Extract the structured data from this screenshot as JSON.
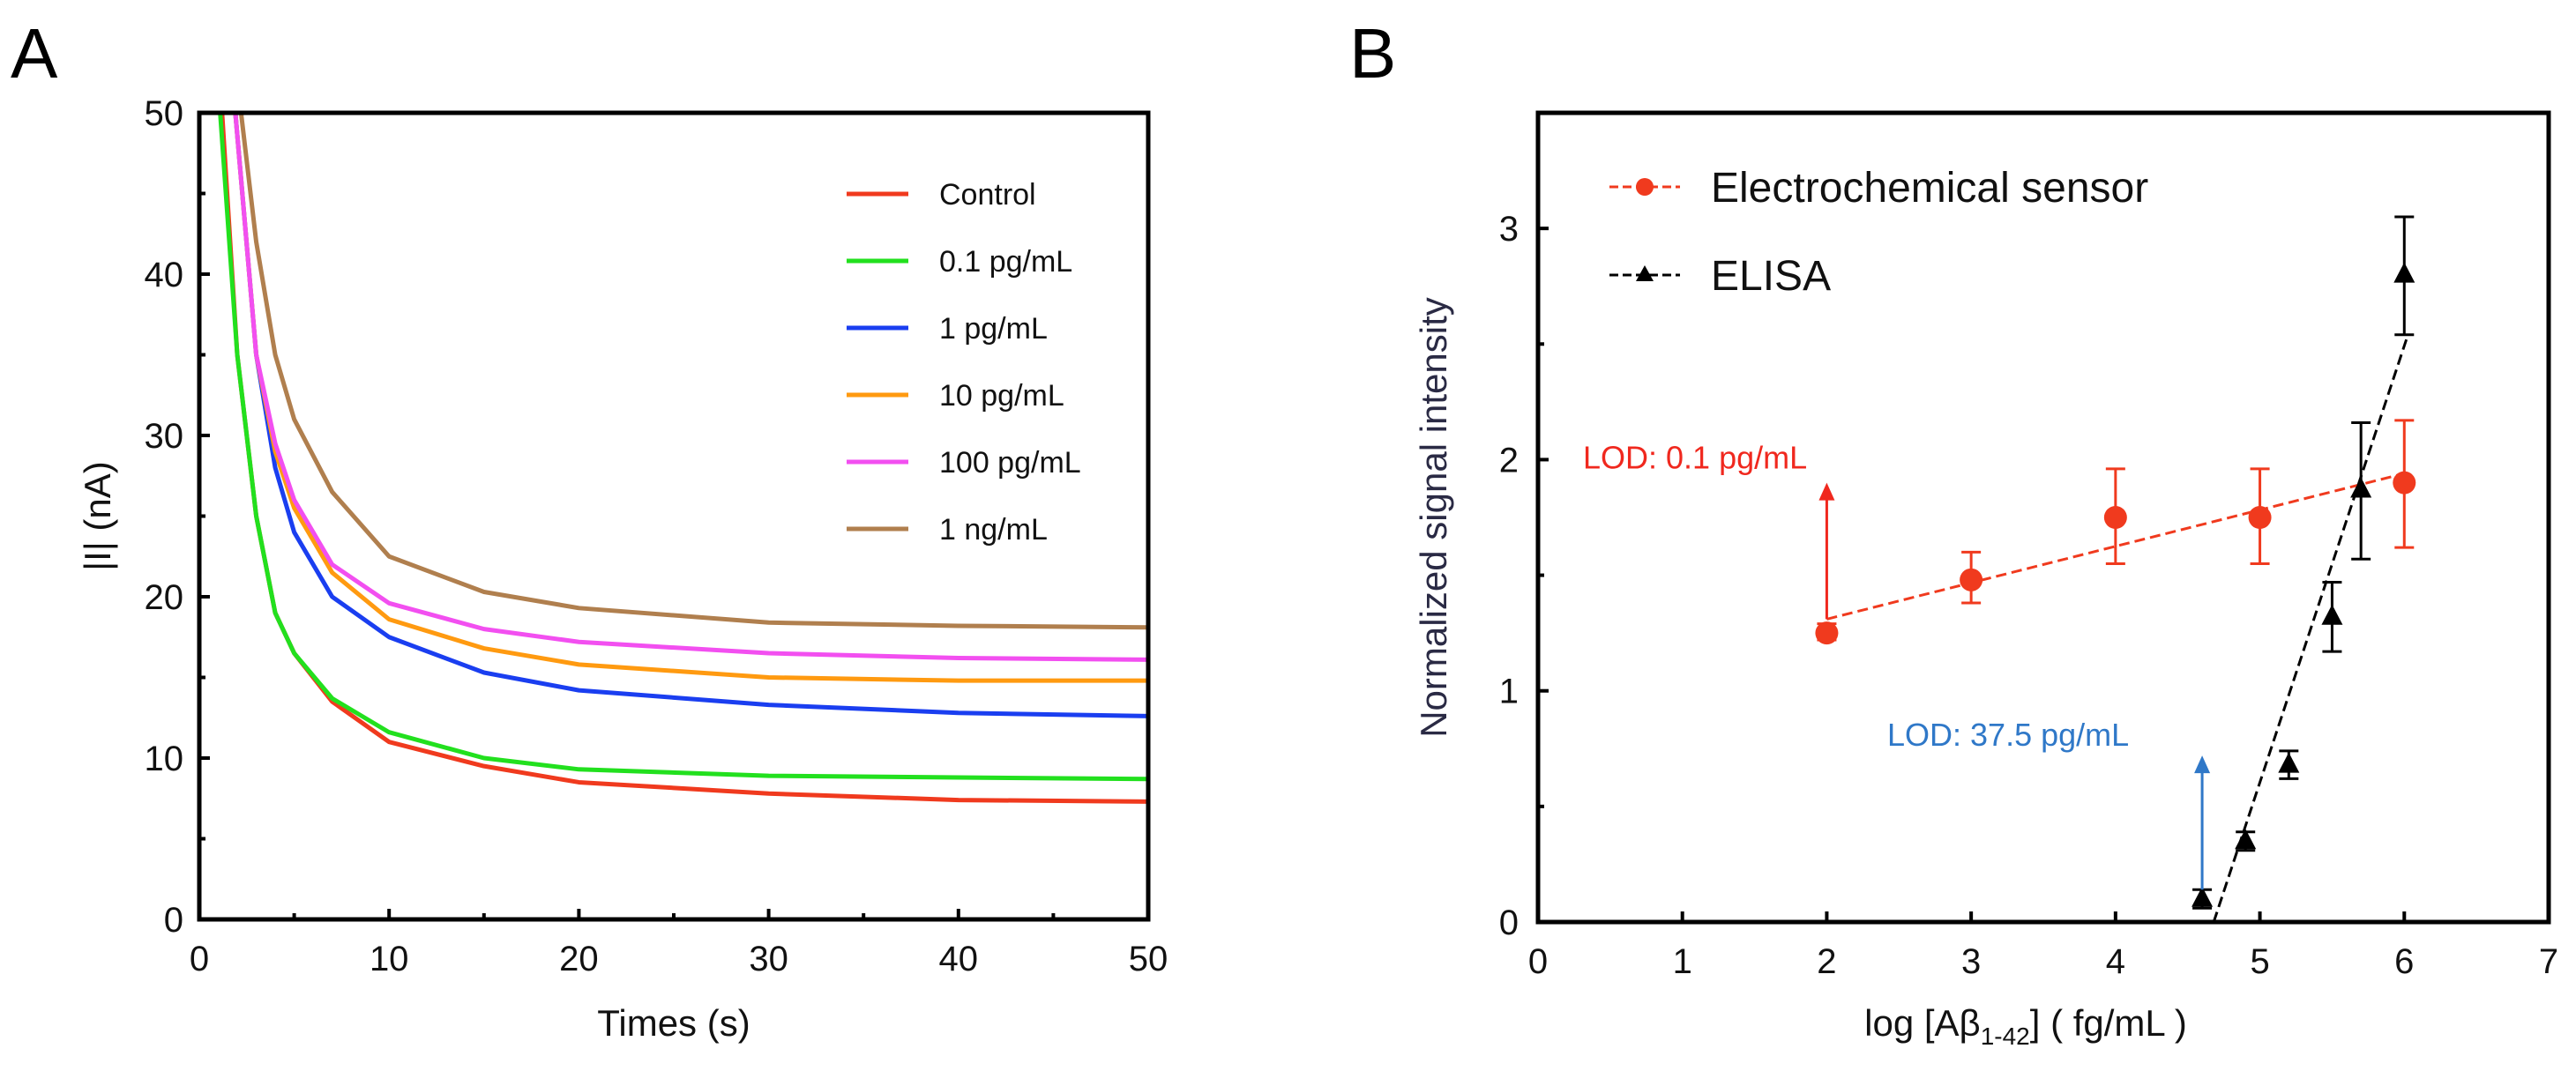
{
  "chart_data": [
    {
      "panel_label": "A",
      "type": "line",
      "title": "",
      "xlabel": "Times (s)",
      "ylabel": "|I| (nA)",
      "xlim": [
        0,
        50
      ],
      "ylim": [
        0,
        50
      ],
      "xticks": [
        "0",
        "10",
        "20",
        "30",
        "40",
        "50"
      ],
      "yticks": [
        "0",
        "10",
        "20",
        "30",
        "40",
        "50"
      ],
      "legend_position": "top-right",
      "series": [
        {
          "name": "Control",
          "color": "#f03a1e",
          "x": [
            1.2,
            2,
            3,
            4,
            5,
            7,
            10,
            15,
            20,
            30,
            40,
            50
          ],
          "y": [
            50,
            35,
            25,
            19,
            16.5,
            13.5,
            11,
            9.5,
            8.5,
            7.8,
            7.4,
            7.3
          ]
        },
        {
          "name": "0.1 pg/mL",
          "color": "#22e01e",
          "x": [
            1.1,
            2,
            3,
            4,
            5,
            7,
            10,
            15,
            20,
            30,
            40,
            50
          ],
          "y": [
            50,
            35,
            25,
            19,
            16.5,
            13.7,
            11.6,
            10,
            9.3,
            8.9,
            8.8,
            8.7
          ]
        },
        {
          "name": "1 pg/mL",
          "color": "#1a3ef0",
          "x": [
            1.9,
            3,
            4,
            5,
            7,
            10,
            15,
            20,
            30,
            40,
            50
          ],
          "y": [
            50,
            35,
            28,
            24,
            20,
            17.5,
            15.3,
            14.2,
            13.3,
            12.8,
            12.6
          ]
        },
        {
          "name": "10 pg/mL",
          "color": "#ff9a10",
          "x": [
            1.9,
            3,
            4,
            5,
            7,
            10,
            15,
            20,
            30,
            40,
            50
          ],
          "y": [
            50,
            35,
            29,
            25.5,
            21.5,
            18.6,
            16.8,
            15.8,
            15,
            14.8,
            14.8
          ]
        },
        {
          "name": "100 pg/mL",
          "color": "#f24ff0",
          "x": [
            1.9,
            3,
            4,
            5,
            7,
            10,
            15,
            20,
            30,
            40,
            50
          ],
          "y": [
            50,
            35,
            29.5,
            26,
            22,
            19.6,
            18,
            17.2,
            16.5,
            16.2,
            16.1
          ]
        },
        {
          "name": "1 ng/mL",
          "color": "#b07f4e",
          "x": [
            2.2,
            3,
            4,
            5,
            7,
            10,
            15,
            20,
            30,
            40,
            50
          ],
          "y": [
            50,
            42,
            35,
            31,
            26.5,
            22.5,
            20.3,
            19.3,
            18.4,
            18.2,
            18.1
          ]
        }
      ]
    },
    {
      "panel_label": "B",
      "type": "scatter",
      "title": "",
      "xlabel_prefix": "log [Aβ",
      "xlabel_sub": "1-42",
      "xlabel_suffix": "] ( fg/mL )",
      "ylabel": "Normalized signal intensity",
      "xlim": [
        0,
        7
      ],
      "ylim": [
        0,
        3.5
      ],
      "xticks": [
        "0",
        "1",
        "2",
        "3",
        "4",
        "5",
        "6",
        "7"
      ],
      "yticks": [
        "0",
        "1",
        "2",
        "3"
      ],
      "legend_position": "top-left",
      "series": [
        {
          "name": "Electrochemical sensor",
          "color": "#f03a1e",
          "marker": "circle",
          "x": [
            2,
            3,
            4,
            5,
            6
          ],
          "y": [
            1.25,
            1.48,
            1.75,
            1.75,
            1.9
          ],
          "err_low": [
            1.22,
            1.38,
            1.55,
            1.55,
            1.62
          ],
          "err_high": [
            1.29,
            1.6,
            1.96,
            1.96,
            2.17
          ],
          "fit": {
            "x": [
              2,
              6
            ],
            "y": [
              1.31,
              1.94
            ]
          }
        },
        {
          "name": "ELISA",
          "color": "#000000",
          "marker": "triangle",
          "x": [
            4.6,
            4.9,
            5.2,
            5.5,
            5.7,
            6.0
          ],
          "y": [
            0.1,
            0.35,
            0.68,
            1.32,
            1.87,
            2.8
          ],
          "err_low": [
            0.06,
            0.31,
            0.62,
            1.17,
            1.57,
            2.54
          ],
          "err_high": [
            0.14,
            0.39,
            0.74,
            1.47,
            2.16,
            3.05
          ],
          "fit": {
            "x": [
              4.68,
              6.02
            ],
            "y": [
              0,
              2.53
            ]
          }
        }
      ],
      "annotations": [
        {
          "text": "LOD: 0.1 pg/mL",
          "color": "#f0281e",
          "arrow_x": 2,
          "arrow_from": 1.31,
          "arrow_to": 1.9,
          "text_y": 2.0
        },
        {
          "text": "LOD: 37.5 pg/mL",
          "color": "#2f78c8",
          "arrow_x": 4.6,
          "arrow_from": 0.14,
          "arrow_to": 0.72,
          "text_y": 0.8
        }
      ]
    }
  ]
}
